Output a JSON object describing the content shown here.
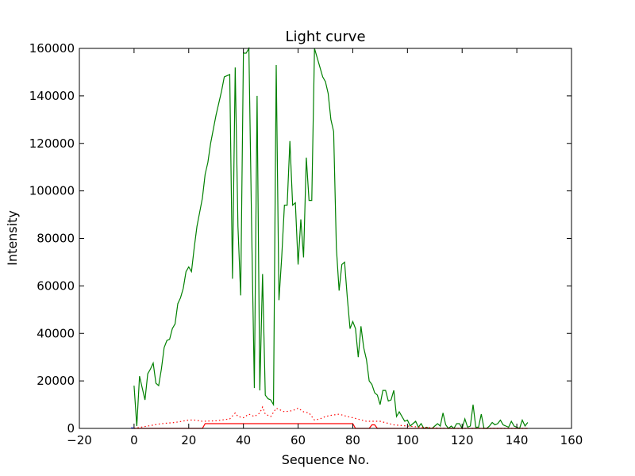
{
  "chart_data": {
    "type": "line",
    "title": "Light curve",
    "xlabel": "Sequence No.",
    "ylabel": "Intensity",
    "xlim": [
      -20,
      160
    ],
    "ylim": [
      0,
      160000
    ],
    "x_ticks": [
      -20,
      0,
      20,
      40,
      60,
      80,
      100,
      120,
      140,
      160
    ],
    "y_ticks": [
      0,
      20000,
      40000,
      60000,
      80000,
      100000,
      120000,
      140000,
      160000
    ],
    "grid": false,
    "legend": "none",
    "series": [
      {
        "color": "#008000",
        "style": "solid",
        "x": [
          0,
          1,
          2,
          3,
          4,
          5,
          6,
          7,
          8,
          9,
          10,
          11,
          12,
          13,
          14,
          15,
          16,
          17,
          18,
          19,
          20,
          21,
          22,
          23,
          24,
          25,
          26,
          27,
          28,
          29,
          30,
          31,
          32,
          33,
          34,
          35,
          36,
          37,
          38,
          39,
          40,
          41,
          42,
          43,
          44,
          45,
          46,
          47,
          48,
          49,
          50,
          51,
          52,
          53,
          54,
          55,
          56,
          57,
          58,
          59,
          60,
          61,
          62,
          63,
          64,
          65,
          66,
          67,
          68,
          69,
          70,
          71,
          72,
          73,
          74,
          75,
          76,
          77,
          78,
          79,
          80,
          81,
          82,
          83,
          84,
          85,
          86,
          87,
          88,
          89,
          90,
          91,
          92,
          93,
          94,
          95,
          96,
          97,
          98,
          99,
          100,
          101,
          102,
          103,
          104,
          105,
          106,
          107,
          108,
          109,
          110,
          111,
          112,
          113,
          114,
          115,
          116,
          117,
          118,
          119,
          120,
          121,
          122,
          123,
          124,
          125,
          126,
          127,
          128,
          129,
          130,
          131,
          132,
          133,
          134,
          135,
          136,
          137,
          138,
          139,
          140,
          141,
          142,
          143,
          144
        ],
        "y": [
          18000,
          1000,
          22000,
          17000,
          12000,
          23000,
          25000,
          27500,
          19000,
          18000,
          25000,
          34000,
          37000,
          37500,
          42000,
          44000,
          52500,
          55000,
          59000,
          66000,
          68000,
          66000,
          76000,
          85000,
          91000,
          97000,
          107000,
          112000,
          120000,
          126000,
          132000,
          137000,
          142000,
          148000,
          148500,
          149000,
          63000,
          152000,
          85000,
          56000,
          158000,
          158000,
          162000,
          85000,
          17000,
          140000,
          16000,
          65000,
          14000,
          12500,
          12000,
          10000,
          153000,
          54000,
          72000,
          94000,
          94000,
          121000,
          94000,
          95000,
          69000,
          88000,
          72000,
          114000,
          96000,
          96000,
          160000,
          156000,
          152000,
          148000,
          146000,
          141000,
          130000,
          125000,
          76000,
          58000,
          69000,
          70000,
          55000,
          42000,
          45000,
          42000,
          30000,
          43000,
          34000,
          29000,
          20000,
          18500,
          15000,
          14000,
          10000,
          16000,
          16000,
          11500,
          12000,
          16000,
          5000,
          7000,
          5000,
          3000,
          3500,
          1000,
          2000,
          3000,
          500,
          2000,
          0,
          500,
          0,
          0,
          1000,
          2000,
          1000,
          6500,
          1500,
          0,
          1000,
          0,
          2000,
          2000,
          0,
          4000,
          500,
          1000,
          10000,
          500,
          500,
          6000,
          0,
          0,
          1000,
          2500,
          1500,
          2000,
          3500,
          1500,
          1000,
          500,
          3000,
          1000,
          500,
          0,
          3500,
          1000,
          2500
        ]
      },
      {
        "color": "#ff0000",
        "style": "dotted",
        "x": [
          0,
          5,
          10,
          15,
          20,
          22,
          25,
          30,
          35,
          37,
          38,
          40,
          42,
          44,
          46,
          47,
          48,
          50,
          52,
          55,
          58,
          60,
          62,
          64,
          66,
          68,
          70,
          72,
          75,
          78,
          80,
          85,
          90,
          95,
          100,
          105,
          110,
          115,
          120,
          125,
          130,
          135,
          140,
          144
        ],
        "y": [
          0,
          1000,
          2000,
          2500,
          3500,
          3500,
          3000,
          3200,
          4000,
          6500,
          5000,
          4500,
          6000,
          5000,
          6500,
          9000,
          6000,
          5000,
          8500,
          7000,
          7500,
          8500,
          7000,
          6500,
          3500,
          4000,
          5000,
          5500,
          6000,
          5000,
          4500,
          3000,
          3000,
          1500,
          1000,
          500,
          200,
          0,
          0,
          0,
          0,
          0,
          0,
          0
        ]
      },
      {
        "color": "#ff0000",
        "style": "solid",
        "x": [
          0,
          25,
          26,
          80,
          81,
          86,
          87,
          88,
          89,
          90,
          144
        ],
        "y": [
          0,
          0,
          2000,
          2000,
          0,
          0,
          1500,
          1500,
          0,
          0,
          0
        ]
      },
      {
        "color": "#0000ff",
        "style": "solid",
        "x": [
          -1,
          0
        ],
        "y": [
          300,
          0
        ]
      }
    ]
  }
}
